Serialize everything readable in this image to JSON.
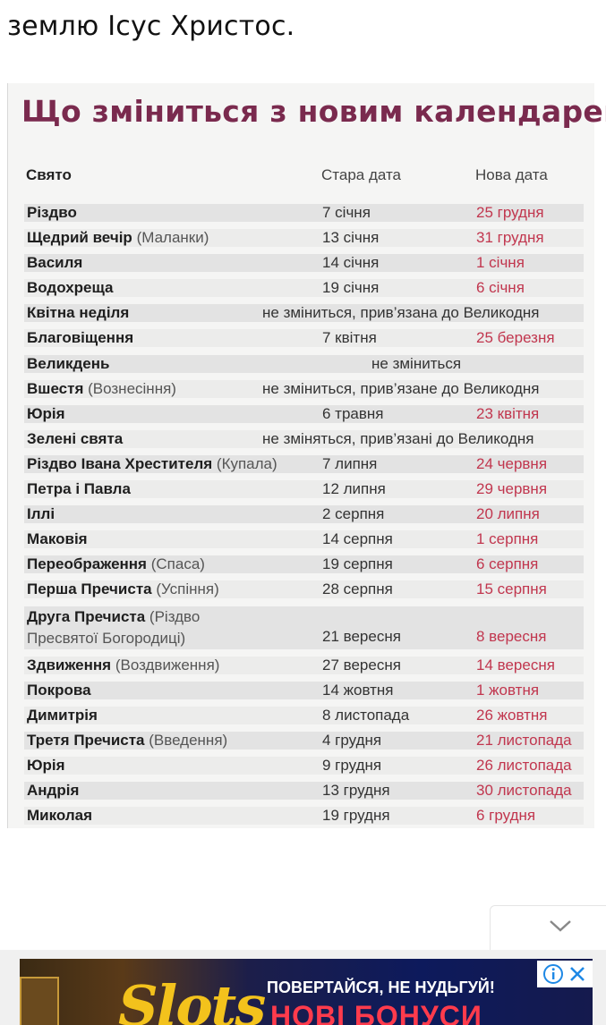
{
  "intro_text": "землю Ісус Христос.",
  "figure": {
    "title": "Що зміниться з новим календарем",
    "headers": {
      "holiday": "Свято",
      "old": "Стара дата",
      "new": "Нова дата"
    },
    "rows": [
      {
        "name": "Різдво",
        "old": "7 січня",
        "new": "25 грудня"
      },
      {
        "name": "Щедрий вечір",
        "paren": "(Маланки)",
        "old": "13 січня",
        "new": "31 грудня"
      },
      {
        "name": "Василя",
        "old": "14 січня",
        "new": "1 січня"
      },
      {
        "name": "Водохреща",
        "old": "19 січня",
        "new": "6 січня"
      },
      {
        "name": "Квітна неділя",
        "span": "не зміниться, прив’язана до Великодня"
      },
      {
        "name": "Благовіщення",
        "old": "7 квітня",
        "new": "25 березня"
      },
      {
        "name": "Великдень",
        "span_center": "не зміниться"
      },
      {
        "name": "Вшестя",
        "paren": "(Вознесіння)",
        "span": "не зміниться, прив’язане до Великодня"
      },
      {
        "name": "Юрія",
        "old": "6 травня",
        "new": "23 квітня"
      },
      {
        "name": "Зелені свята",
        "span": "не зміняться, прив’язані до Великодня"
      },
      {
        "name": "Різдво Івана Хрестителя",
        "paren": "(Купала)",
        "old": "7 липня",
        "new": "24 червня"
      },
      {
        "name": "Петра і Павла",
        "old": "12 липня",
        "new": "29 червня"
      },
      {
        "name": "Іллі",
        "old": "2 серпня",
        "new": "20 липня"
      },
      {
        "name": "Маковія",
        "old": "14 серпня",
        "new": "1 серпня"
      },
      {
        "name": "Переображення",
        "paren": "(Спаса)",
        "old": "19 серпня",
        "new": "6 серпня"
      },
      {
        "name": "Перша Пречиста",
        "paren": "(Успіння)",
        "old": "28 серпня",
        "new": "15 серпня"
      },
      {
        "name": "Друга Пречиста",
        "paren": "(Різдво",
        "line2": "Пресвятої Богородиці)",
        "old": "21 вересня",
        "new": "8 вересня"
      },
      {
        "name": "Здвиження",
        "paren": "(Воздвиження)",
        "old": "27 вересня",
        "new": "14 вересня"
      },
      {
        "name": "Покрова",
        "old": "14 жовтня",
        "new": "1 жовтня"
      },
      {
        "name": "Димитрія",
        "old": "8 листопада",
        "new": "26 жовтня"
      },
      {
        "name": "Третя Пречиста",
        "paren": "(Введення)",
        "old": "4 грудня",
        "new": "21 листопада"
      },
      {
        "name": "Юрія",
        "old": "9 грудня",
        "new": "26 листопада"
      },
      {
        "name": "Андрія",
        "old": "13 грудня",
        "new": "30 листопада"
      },
      {
        "name": "Миколая",
        "old": "19 грудня",
        "new": "6 грудня"
      }
    ]
  },
  "ad": {
    "logo": "Slots",
    "tagline": "ПОВЕРТАЙСЯ, НЕ НУДЬГУЙ!",
    "headline": "НОВІ БОНУСИ",
    "info_icon": "info-icon",
    "close_icon": "close-icon"
  },
  "collapse_icon": "chevron-down-icon",
  "colors": {
    "title": "#7a2a4e",
    "new_date": "#c1364e",
    "ad_logo": "#f3c21c",
    "ad_headline": "#ff3b4c"
  }
}
